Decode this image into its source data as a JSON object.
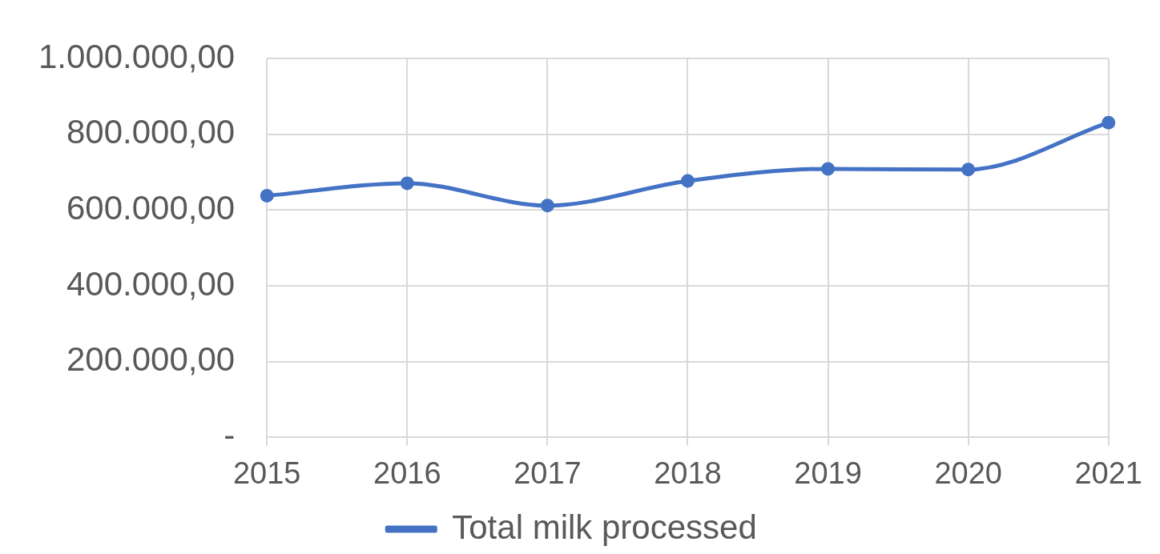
{
  "chart_data": {
    "type": "line",
    "categories": [
      "2015",
      "2016",
      "2017",
      "2018",
      "2019",
      "2020",
      "2021"
    ],
    "series": [
      {
        "name": "Total milk processed",
        "color": "#4472c4",
        "values": [
          638000,
          671000,
          612000,
          677000,
          709000,
          707000,
          831000
        ]
      }
    ],
    "ylim": [
      0,
      1000000
    ],
    "yticks": [
      {
        "value": 0,
        "label": "-"
      },
      {
        "value": 200000,
        "label": "200.000,00"
      },
      {
        "value": 400000,
        "label": "400.000,00"
      },
      {
        "value": 600000,
        "label": "600.000,00"
      },
      {
        "value": 800000,
        "label": "800.000,00"
      },
      {
        "value": 1000000,
        "label": "1.000.000,00"
      }
    ],
    "grid": true,
    "legend": "bottom",
    "marker": "circle",
    "line_style": "solid"
  }
}
